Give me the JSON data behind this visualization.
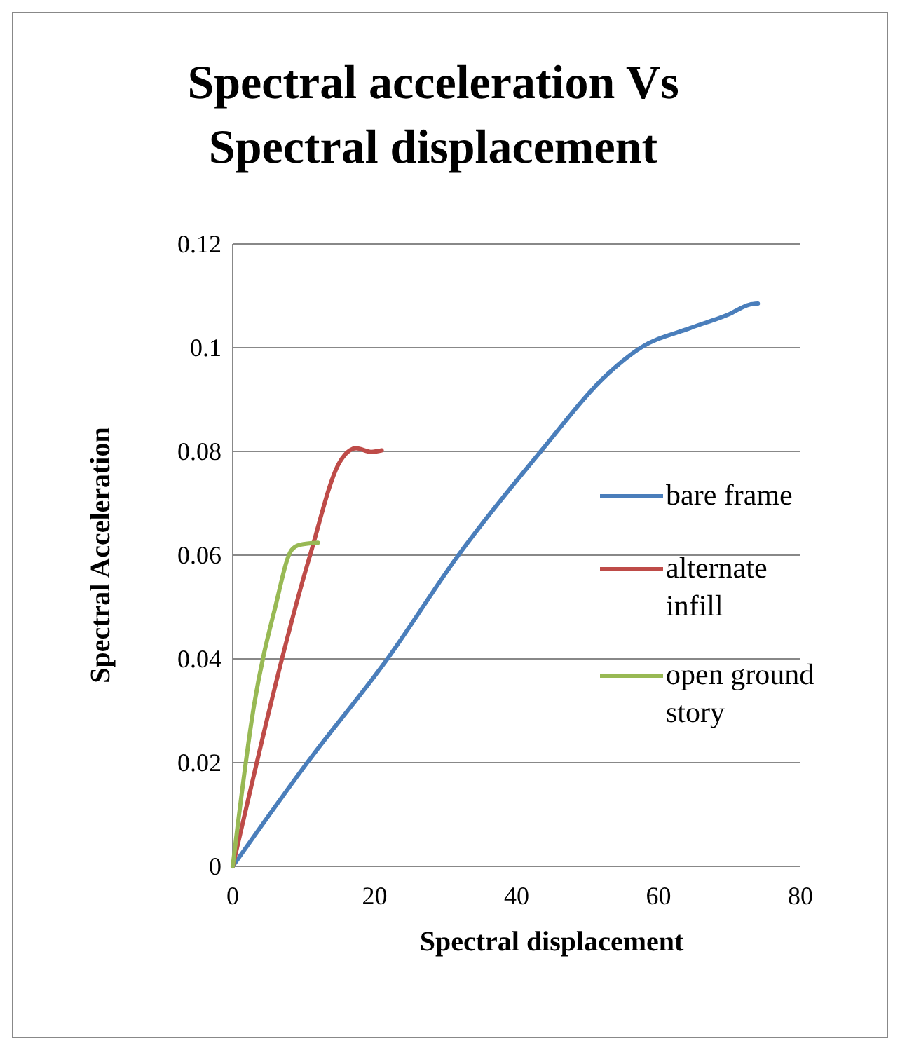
{
  "chart_data": {
    "type": "line",
    "title": "Spectral acceleration Vs Spectral displacement",
    "xlabel": "Spectral displacement",
    "ylabel": "Spectral Acceleration",
    "xlim": [
      0,
      80
    ],
    "xticks": [
      0,
      20,
      40,
      60,
      80
    ],
    "ylim": [
      0,
      0.12
    ],
    "yticks": [
      0,
      0.02,
      0.04,
      0.06,
      0.08,
      0.1,
      0.12
    ],
    "grid": "y",
    "legend": "right",
    "marker": "none",
    "line_style": "solid",
    "series": [
      {
        "name": "bare frame",
        "color": "#4a7ebb",
        "x": [
          0,
          10.5,
          21.8,
          31.8,
          43.4,
          52.9,
          57.5,
          64.5,
          70,
          72.8,
          74
        ],
        "values": [
          0,
          0.02,
          0.04,
          0.06,
          0.08,
          0.095,
          0.1,
          0.1038,
          0.1065,
          0.1083,
          0.1085
        ]
      },
      {
        "name": "alternate infill",
        "color": "#be4b48",
        "x": [
          0,
          10.9,
          15.1,
          16.5,
          17.4,
          19.5,
          21
        ],
        "values": [
          0,
          0.06,
          0.078,
          0.0802,
          0.0806,
          0.0799,
          0.0802
        ]
      },
      {
        "name": "open ground story",
        "color": "#98b954",
        "x": [
          0,
          3,
          6,
          8.3,
          9.5,
          12
        ],
        "values": [
          0,
          0.031,
          0.05,
          0.061,
          0.062,
          0.0624
        ]
      }
    ]
  }
}
